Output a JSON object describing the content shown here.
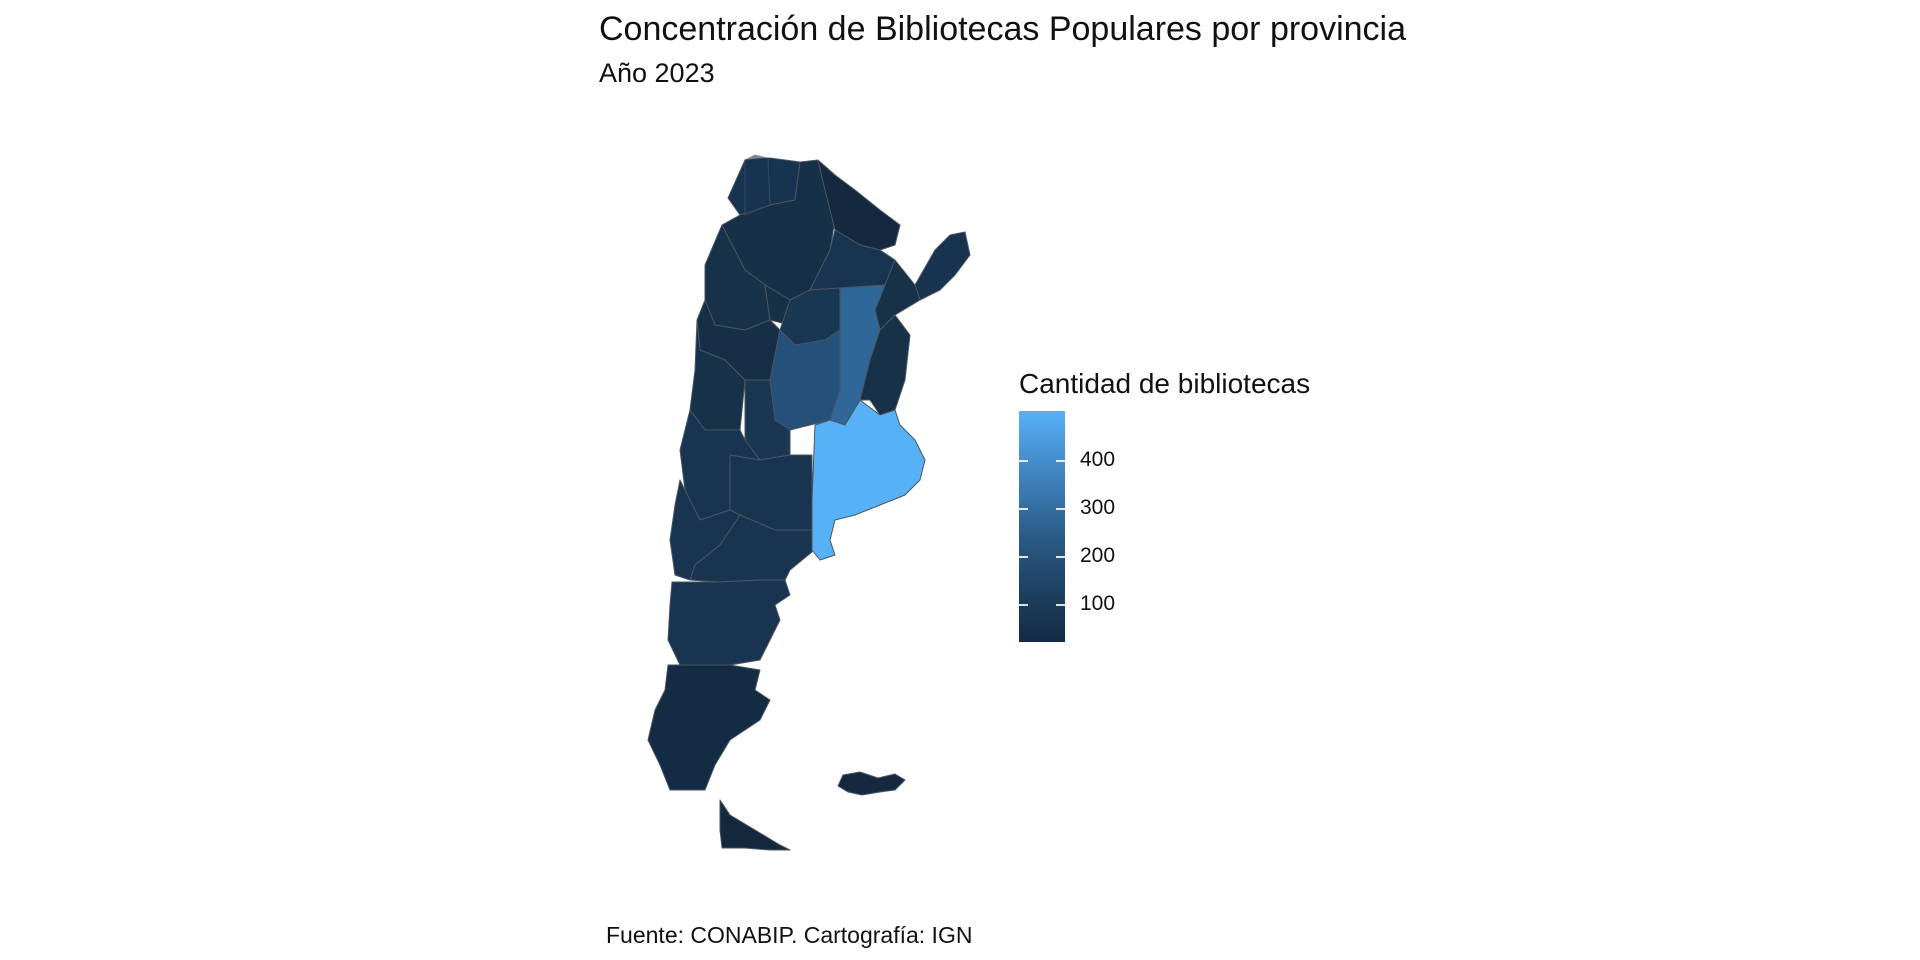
{
  "header": {
    "title": "Concentración de Bibliotecas Populares por provincia",
    "subtitle": "Año 2023"
  },
  "legend": {
    "title": "Cantidad de bibliotecas",
    "ticks": [
      "100",
      "200",
      "300",
      "400"
    ],
    "tick_values": [
      100,
      200,
      300,
      400
    ],
    "range": [
      16,
      490
    ],
    "color_low": "#132b43",
    "color_high": "#56b1f7"
  },
  "caption": "Fuente: CONABIP. Cartografía: IGN",
  "map": {
    "type": "choropleth",
    "variable": "Cantidad de bibliotecas",
    "border_color": "#4a5561",
    "highlighted_regions": {
      "top_value_region": "#56b1f7",
      "second_tier_regions": "#2f6798",
      "mid_region": "#24507a"
    }
  }
}
